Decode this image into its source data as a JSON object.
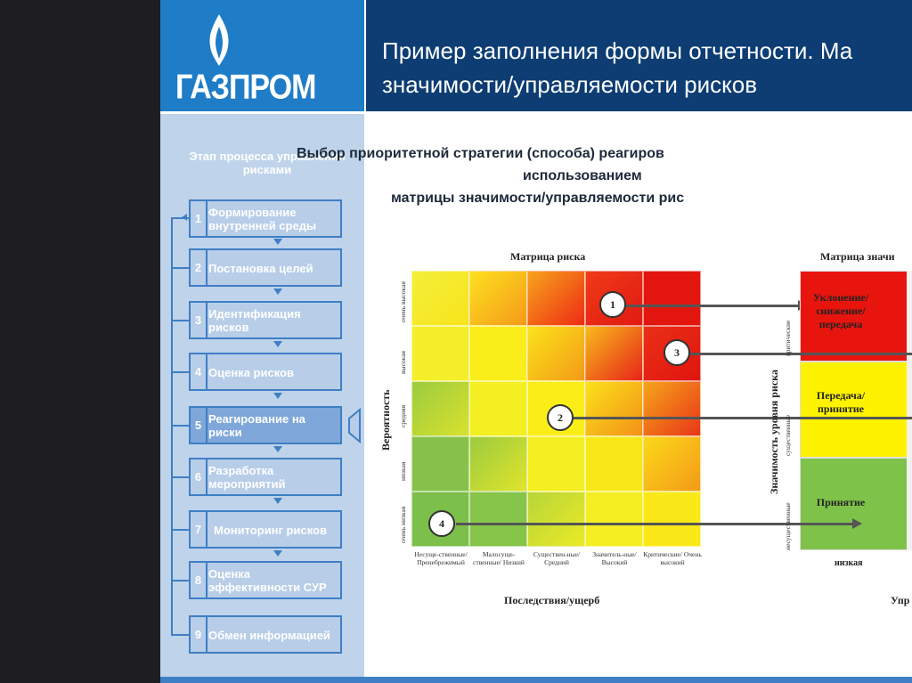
{
  "header": {
    "logo_text": "ГАЗПРОМ",
    "title_line1": "Пример заполнения формы отчетности. Ма",
    "title_line2": "значимости/управляемости рисков"
  },
  "sidebar": {
    "title": "Этап процесса управления рисками",
    "steps": [
      {
        "num": "1",
        "label": "Формирование внутренней среды"
      },
      {
        "num": "2",
        "label": "Постановка целей"
      },
      {
        "num": "3",
        "label": "Идентификация рисков"
      },
      {
        "num": "4",
        "label": "Оценка рисков"
      },
      {
        "num": "5",
        "label": "Реагирование на риски"
      },
      {
        "num": "6",
        "label": "Разработка мероприятий"
      },
      {
        "num": "7",
        "label": "Мониторинг рисков"
      },
      {
        "num": "8",
        "label": "Оценка эффективности СУР"
      },
      {
        "num": "9",
        "label": "Обмен информацией"
      }
    ],
    "active_step": "5"
  },
  "content": {
    "subtitle_line1": "Выбор приоритетной стратегии (способа) реагиров",
    "subtitle_line2": "использованием",
    "subtitle_line3": "матрицы значимости/управляемости рис",
    "risk_matrix": {
      "title": "Матрица риска",
      "y_axis_label": "Вероятность",
      "x_axis_label": "Последствия/ущерб",
      "y_levels": [
        "очень низкая",
        "низкая",
        "средняя",
        "высокая",
        "очень высокая"
      ],
      "x_levels": [
        "Несуще-ственные/ Пренебрежимый",
        "Малосуще-ственные/ Низкий",
        "Существен-ные/ Средний",
        "Значитель-ные/ Высокий",
        "Критические/ Очень высокий"
      ],
      "markers": [
        "1",
        "2",
        "3",
        "4"
      ]
    },
    "significance_matrix": {
      "title": "Матрица значи",
      "y_axis_label": "Значимость уровня риска",
      "y_levels": [
        "несущественные",
        "существенные",
        "критические"
      ],
      "zones": [
        {
          "label": "Уклонение/ снижение/ передача",
          "color": "#e8150f"
        },
        {
          "label": "Передача/ принятие",
          "color": "#fff200"
        },
        {
          "label": "Принятие",
          "color": "#7fc24a"
        }
      ],
      "x_first_label": "низкая",
      "x_axis_partial": "Упр"
    }
  }
}
